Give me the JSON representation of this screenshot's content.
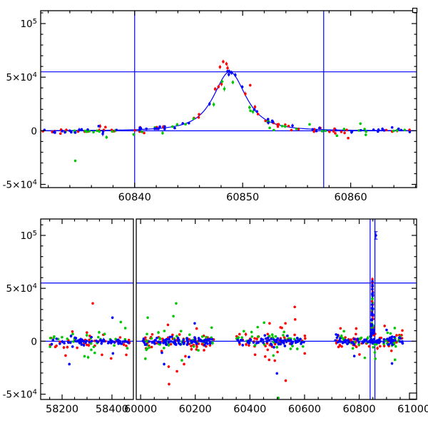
{
  "chart_data": {
    "type": "scatter",
    "title": "",
    "xlabel": "",
    "ylabel": "",
    "series_colors": {
      "red": "#ff0000",
      "green": "#00c800",
      "blue": "#0000ff"
    },
    "model_color": "#0000ff",
    "reference_line_color": "#0000ff",
    "frame_color": "#000000",
    "model": {
      "t0": 60848.8,
      "peak_flux": 55000,
      "width_days": 2.2,
      "power": 1.4
    },
    "reference_lines": {
      "horizontal_flux": [
        0,
        55000
      ],
      "vertical_time": [
        60840,
        60857.5
      ]
    },
    "top_panel": {
      "ylim": [
        -53000,
        112000
      ],
      "y_minor_step": 10000,
      "y_major_step": 50000,
      "y_tick_labels": [
        {
          "v": 100000,
          "label": "10^5"
        },
        {
          "v": 50000,
          "label": "5×10^4"
        },
        {
          "v": 0,
          "label": "0"
        },
        {
          "v": -50000,
          "label": "-5×10^4"
        }
      ],
      "x_minor_step": 2,
      "x_major_step": 10,
      "segments": [
        {
          "xlim": [
            60831.3,
            60866.1
          ]
        }
      ],
      "x_tick_labels": [
        {
          "t": 60840,
          "label": "60840"
        },
        {
          "t": 60850,
          "label": "60850"
        },
        {
          "t": 60860,
          "label": "60860"
        }
      ],
      "has_model_curve": true,
      "approx_scatter": [
        {
          "series": "red",
          "x_range": [
            60831.5,
            60838.4
          ],
          "n": 16,
          "sigma_flux": 1300,
          "follow_model": false
        },
        {
          "series": "green",
          "x_range": [
            60831.5,
            60838.4
          ],
          "n": 13,
          "sigma_flux": 1300,
          "follow_model": false
        },
        {
          "series": "blue",
          "x_range": [
            60831.5,
            60838.4
          ],
          "n": 16,
          "sigma_flux": 1300,
          "follow_model": false
        },
        {
          "series": "red",
          "x_range": [
            60839.9,
            60857.4
          ],
          "n": 30,
          "sigma_flux": 1800,
          "follow_model": true,
          "model_factor": 1.07
        },
        {
          "series": "green",
          "x_range": [
            60839.9,
            60857.4
          ],
          "n": 24,
          "sigma_flux": 2600,
          "follow_model": true,
          "model_factor": 0.8
        },
        {
          "series": "blue",
          "x_range": [
            60839.9,
            60857.4
          ],
          "n": 30,
          "sigma_flux": 1100,
          "follow_model": true,
          "model_factor": 1.0
        },
        {
          "series": "red",
          "x_range": [
            60857.5,
            60865.9
          ],
          "n": 13,
          "sigma_flux": 1300,
          "follow_model": false
        },
        {
          "series": "green",
          "x_range": [
            60857.5,
            60865.9
          ],
          "n": 10,
          "sigma_flux": 1300,
          "follow_model": false
        },
        {
          "series": "blue",
          "x_range": [
            60857.5,
            60865.9
          ],
          "n": 13,
          "sigma_flux": 1300,
          "follow_model": false
        }
      ],
      "outliers": [
        {
          "series": "green",
          "t": 60834.5,
          "flux": -28000
        },
        {
          "series": "green",
          "t": 60860.9,
          "flux": 6700
        },
        {
          "series": "green",
          "t": 60861.4,
          "flux": -3800
        },
        {
          "series": "green",
          "t": 60852.3,
          "flux": 8500
        },
        {
          "series": "red",
          "t": 60836.8,
          "flux": 4300,
          "err": 2000
        },
        {
          "series": "red",
          "t": 60837.3,
          "flux": 3400
        },
        {
          "series": "red",
          "t": 60848.2,
          "flux": 64500,
          "err": 1800
        },
        {
          "series": "red",
          "t": 60848.5,
          "flux": 62500,
          "err": 1800
        },
        {
          "series": "red",
          "t": 60847.9,
          "flux": 59500,
          "err": 1800
        },
        {
          "series": "red",
          "t": 60850.7,
          "flux": 42500
        },
        {
          "series": "blue",
          "t": 60848.6,
          "flux": 55500
        },
        {
          "series": "blue",
          "t": 60848.9,
          "flux": 54500
        }
      ]
    },
    "bottom_panel": {
      "ylim": [
        -55000,
        115500
      ],
      "y_minor_step": 10000,
      "y_major_step": 50000,
      "y_tick_labels": [
        {
          "v": 100000,
          "label": "10^5"
        },
        {
          "v": 50000,
          "label": "5×10^4"
        },
        {
          "v": 0,
          "label": "0"
        },
        {
          "v": -50000,
          "label": "-5×10^4"
        }
      ],
      "x_minor_step": 50,
      "x_major_step": 200,
      "segments": [
        {
          "xlim": [
            58114,
            58486
          ]
        },
        {
          "xlim": [
            59984,
            61010
          ]
        }
      ],
      "x_tick_labels": [
        {
          "t": 58200,
          "label": "58200"
        },
        {
          "t": 58400,
          "label": "58400"
        },
        {
          "t": 60000,
          "label": "60000"
        },
        {
          "t": 60200,
          "label": "60200"
        },
        {
          "t": 60400,
          "label": "60400"
        },
        {
          "t": 60600,
          "label": "60600"
        },
        {
          "t": 60800,
          "label": "60800"
        },
        {
          "t": 61000,
          "label": "61000"
        }
      ],
      "has_model_curve": false,
      "observing_seasons": [
        [
          58150,
          58472
        ],
        [
          60008,
          60268
        ],
        [
          60350,
          60605
        ],
        [
          60712,
          60962
        ]
      ],
      "approx_scatter": [
        {
          "series": "red",
          "x_range": [
            58150,
            58472
          ],
          "n": 38,
          "sigma_flux": 3600
        },
        {
          "series": "green",
          "x_range": [
            58150,
            58472
          ],
          "n": 30,
          "sigma_flux": 4000
        },
        {
          "series": "blue",
          "x_range": [
            58150,
            58472
          ],
          "n": 58,
          "sigma_flux": 1600
        },
        {
          "series": "red",
          "x_range": [
            60008,
            60268
          ],
          "n": 60,
          "sigma_flux": 4200
        },
        {
          "series": "green",
          "x_range": [
            60008,
            60268
          ],
          "n": 45,
          "sigma_flux": 4300
        },
        {
          "series": "blue",
          "x_range": [
            60008,
            60268
          ],
          "n": 85,
          "sigma_flux": 1700
        },
        {
          "series": "red",
          "x_range": [
            60350,
            60605
          ],
          "n": 48,
          "sigma_flux": 4000
        },
        {
          "series": "green",
          "x_range": [
            60350,
            60605
          ],
          "n": 38,
          "sigma_flux": 4200
        },
        {
          "series": "blue",
          "x_range": [
            60350,
            60605
          ],
          "n": 72,
          "sigma_flux": 1600
        },
        {
          "series": "red",
          "x_range": [
            60712,
            60962
          ],
          "n": 52,
          "sigma_flux": 3800
        },
        {
          "series": "green",
          "x_range": [
            60712,
            60962
          ],
          "n": 42,
          "sigma_flux": 4000
        },
        {
          "series": "blue",
          "x_range": [
            60712,
            60962
          ],
          "n": 78,
          "sigma_flux": 1600
        },
        {
          "series": "red",
          "x_gauss": {
            "center": 60848.8,
            "sigma": 2.8,
            "min": 60840.3,
            "max": 60857.2
          },
          "n": 30,
          "sigma_flux": 2200,
          "follow_model": true,
          "model_factor": 1.07
        },
        {
          "series": "green",
          "x_gauss": {
            "center": 60848.8,
            "sigma": 2.8,
            "min": 60840.3,
            "max": 60857.2
          },
          "n": 20,
          "sigma_flux": 2600,
          "follow_model": true,
          "model_factor": 0.8
        },
        {
          "series": "blue",
          "x_gauss": {
            "center": 60848.8,
            "sigma": 2.8,
            "min": 60840.3,
            "max": 60857.2
          },
          "n": 30,
          "sigma_flux": 1500,
          "follow_model": true,
          "model_factor": 1.0
        }
      ],
      "outliers": [
        {
          "series": "red",
          "t": 58323,
          "flux": 35800
        },
        {
          "series": "red",
          "t": 58214,
          "flux": -13500
        },
        {
          "series": "red",
          "t": 58360,
          "flux": -12800
        },
        {
          "series": "red",
          "t": 60104,
          "flux": -40500
        },
        {
          "series": "red",
          "t": 60133,
          "flux": -28400
        },
        {
          "series": "red",
          "t": 60159,
          "flux": -21600
        },
        {
          "series": "red",
          "t": 60164,
          "flux": -14200
        },
        {
          "series": "red",
          "t": 60100,
          "flux": 15500
        },
        {
          "series": "red",
          "t": 60205,
          "flux": 12000
        },
        {
          "series": "red",
          "t": 60564,
          "flux": 32400
        },
        {
          "series": "red",
          "t": 60472,
          "flux": 16900
        },
        {
          "series": "red",
          "t": 60530,
          "flux": 16900
        },
        {
          "series": "red",
          "t": 60531,
          "flux": -37200
        },
        {
          "series": "red",
          "t": 60491,
          "flux": -18300
        },
        {
          "series": "red",
          "t": 60465,
          "flux": -8100
        },
        {
          "series": "red",
          "t": 60893,
          "flux": 14500
        },
        {
          "series": "red",
          "t": 60789,
          "flux": 12000
        },
        {
          "series": "red",
          "t": 60801,
          "flux": -12500
        },
        {
          "series": "red",
          "t": 60918,
          "flux": -9000
        },
        {
          "series": "green",
          "t": 58317,
          "flux": -8100
        },
        {
          "series": "green",
          "t": 58290,
          "flux": -14200
        },
        {
          "series": "green",
          "t": 58331,
          "flux": -11000
        },
        {
          "series": "green",
          "t": 60130,
          "flux": 35800
        },
        {
          "series": "green",
          "t": 60120,
          "flux": 23700
        },
        {
          "series": "green",
          "t": 60026,
          "flux": 22300
        },
        {
          "series": "green",
          "t": 60021,
          "flux": -8100
        },
        {
          "series": "green",
          "t": 60151,
          "flux": -18000
        },
        {
          "series": "green",
          "t": 60452,
          "flux": 17600
        },
        {
          "series": "green",
          "t": 60525,
          "flux": 8800
        },
        {
          "series": "green",
          "t": 60486,
          "flux": -13500
        },
        {
          "series": "green",
          "t": 60504,
          "flux": -53500
        },
        {
          "series": "green",
          "t": 60930,
          "flux": 12500
        },
        {
          "series": "green",
          "t": 60859,
          "flux": -16500
        },
        {
          "series": "green",
          "t": 60931,
          "flux": -17500
        },
        {
          "series": "green",
          "t": 60744,
          "flux": 9500
        },
        {
          "series": "blue",
          "t": 58229,
          "flux": -21600
        },
        {
          "series": "blue",
          "t": 58402,
          "flux": 22300
        },
        {
          "series": "blue",
          "t": 58404,
          "flux": -11500
        },
        {
          "series": "blue",
          "t": 60086,
          "flux": -21600
        },
        {
          "series": "blue",
          "t": 60198,
          "flux": 16900
        },
        {
          "series": "blue",
          "t": 60177,
          "flux": -14900
        },
        {
          "series": "blue",
          "t": 60499,
          "flux": -30400
        },
        {
          "series": "blue",
          "t": 60861,
          "flux": 100000,
          "err": 3500
        },
        {
          "series": "blue",
          "t": 60920,
          "flux": -21000
        },
        {
          "series": "blue",
          "t": 60782,
          "flux": -14000
        }
      ]
    }
  }
}
